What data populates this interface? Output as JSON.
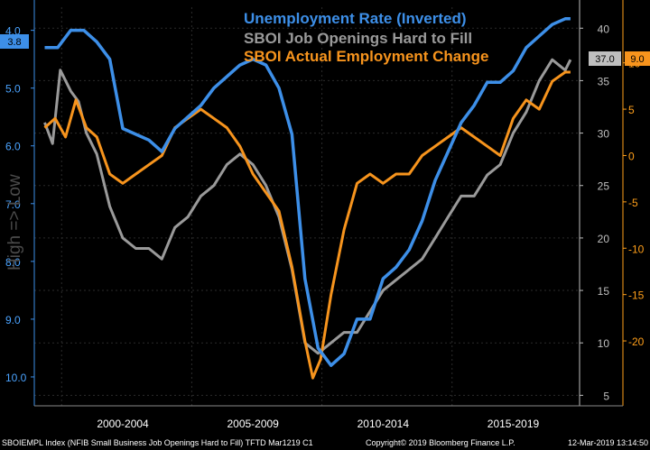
{
  "chart_data": {
    "type": "line",
    "title_lines": [
      {
        "text": "Unemployment Rate (Inverted)",
        "color": "#3d8fe8"
      },
      {
        "text": "SBOI Job Openings Hard to Fill",
        "color": "#9a9a9a"
      },
      {
        "text": "SBOI Actual Employment Change",
        "color": "#f7941d"
      }
    ],
    "ylabel_left": "High => Low",
    "x_categories": [
      "2000-2004",
      "2005-2009",
      "2010-2014",
      "2015-2019"
    ],
    "left_axis": {
      "inverted": true,
      "range": [
        3.6,
        10.5
      ],
      "ticks": [
        "4.0",
        "5.0",
        "6.0",
        "7.0",
        "8.0",
        "9.0",
        "10.0"
      ]
    },
    "middle_axis": {
      "range": [
        4,
        42
      ],
      "ticks": [
        "40",
        "35",
        "30",
        "25",
        "20",
        "15",
        "10",
        "5"
      ]
    },
    "right_axis": {
      "range": [
        -27,
        16
      ],
      "ticks": [
        "10",
        "5",
        "0",
        "-5",
        "-10",
        "-15",
        "-20"
      ]
    },
    "last_value_labels": {
      "unemployment": "3.8",
      "hard_to_fill": "37.0",
      "employment_change": "9.0"
    },
    "footer_left": "SBOIEMPL Index (NFIB Small Business Job Openings Hard to Fill) TFTD Mar1219 C1",
    "footer_center": "Copyright© 2019 Bloomberg Finance L.P.",
    "footer_right": "12-Mar-2019 13:14:50",
    "series": [
      {
        "name": "Unemployment Rate (Inverted)",
        "axis": "left",
        "color": "#3d8fe8",
        "x": [
          1999.0,
          1999.5,
          2000.0,
          2000.5,
          2001.0,
          2001.5,
          2002.0,
          2002.5,
          2003.0,
          2003.5,
          2004.0,
          2004.5,
          2005.0,
          2005.5,
          2006.0,
          2006.5,
          2007.0,
          2007.5,
          2008.0,
          2008.5,
          2009.0,
          2009.5,
          2010.0,
          2010.5,
          2011.0,
          2011.5,
          2012.0,
          2012.5,
          2013.0,
          2013.5,
          2014.0,
          2014.5,
          2015.0,
          2015.5,
          2016.0,
          2016.5,
          2017.0,
          2017.5,
          2018.0,
          2018.5,
          2019.0,
          2019.2
        ],
        "y": [
          4.3,
          4.3,
          4.0,
          4.0,
          4.2,
          4.5,
          5.7,
          5.8,
          5.9,
          6.1,
          5.7,
          5.5,
          5.3,
          5.0,
          4.8,
          4.6,
          4.5,
          4.6,
          5.0,
          5.8,
          8.3,
          9.5,
          9.8,
          9.6,
          9.0,
          9.0,
          8.3,
          8.1,
          7.8,
          7.3,
          6.6,
          6.1,
          5.6,
          5.3,
          4.9,
          4.9,
          4.7,
          4.3,
          4.1,
          3.9,
          3.8,
          3.8
        ]
      },
      {
        "name": "SBOI Job Openings Hard to Fill",
        "axis": "middle",
        "color": "#9a9a9a",
        "x": [
          1999.0,
          1999.3,
          1999.6,
          2000.0,
          2000.3,
          2000.6,
          2001.0,
          2001.5,
          2002.0,
          2002.5,
          2003.0,
          2003.5,
          2004.0,
          2004.5,
          2005.0,
          2005.5,
          2006.0,
          2006.5,
          2007.0,
          2007.5,
          2008.0,
          2008.5,
          2009.0,
          2009.5,
          2010.0,
          2010.5,
          2011.0,
          2011.5,
          2012.0,
          2012.5,
          2013.0,
          2013.5,
          2014.0,
          2014.5,
          2015.0,
          2015.5,
          2016.0,
          2016.5,
          2017.0,
          2017.5,
          2018.0,
          2018.5,
          2019.0,
          2019.2
        ],
        "y": [
          31,
          29,
          36,
          34,
          33,
          30,
          28,
          23,
          20,
          19,
          19,
          18,
          21,
          22,
          24,
          25,
          27,
          28,
          27,
          25,
          22,
          17,
          10,
          9,
          10,
          11,
          11,
          13,
          15,
          16,
          17,
          18,
          20,
          22,
          24,
          24,
          26,
          27,
          30,
          32,
          35,
          37,
          36,
          37
        ]
      },
      {
        "name": "SBOI Actual Employment Change",
        "axis": "right",
        "color": "#f7941d",
        "x": [
          1999.0,
          1999.4,
          1999.8,
          2000.2,
          2000.6,
          2001.0,
          2001.5,
          2002.0,
          2002.5,
          2003.0,
          2003.5,
          2004.0,
          2004.5,
          2005.0,
          2005.5,
          2006.0,
          2006.5,
          2007.0,
          2007.5,
          2008.0,
          2008.5,
          2009.0,
          2009.3,
          2009.6,
          2010.0,
          2010.5,
          2011.0,
          2011.5,
          2012.0,
          2012.5,
          2013.0,
          2013.5,
          2014.0,
          2014.5,
          2015.0,
          2015.5,
          2016.0,
          2016.5,
          2017.0,
          2017.5,
          2018.0,
          2018.5,
          2019.0,
          2019.2
        ],
        "y": [
          3,
          4,
          2,
          6,
          3,
          2,
          -2,
          -3,
          -2,
          -1,
          0,
          3,
          4,
          5,
          4,
          3,
          1,
          -2,
          -4,
          -6,
          -12,
          -20,
          -24,
          -22,
          -15,
          -8,
          -3,
          -2,
          -3,
          -2,
          -2,
          0,
          1,
          2,
          3,
          2,
          1,
          0,
          4,
          6,
          5,
          8,
          9,
          9
        ]
      }
    ]
  }
}
